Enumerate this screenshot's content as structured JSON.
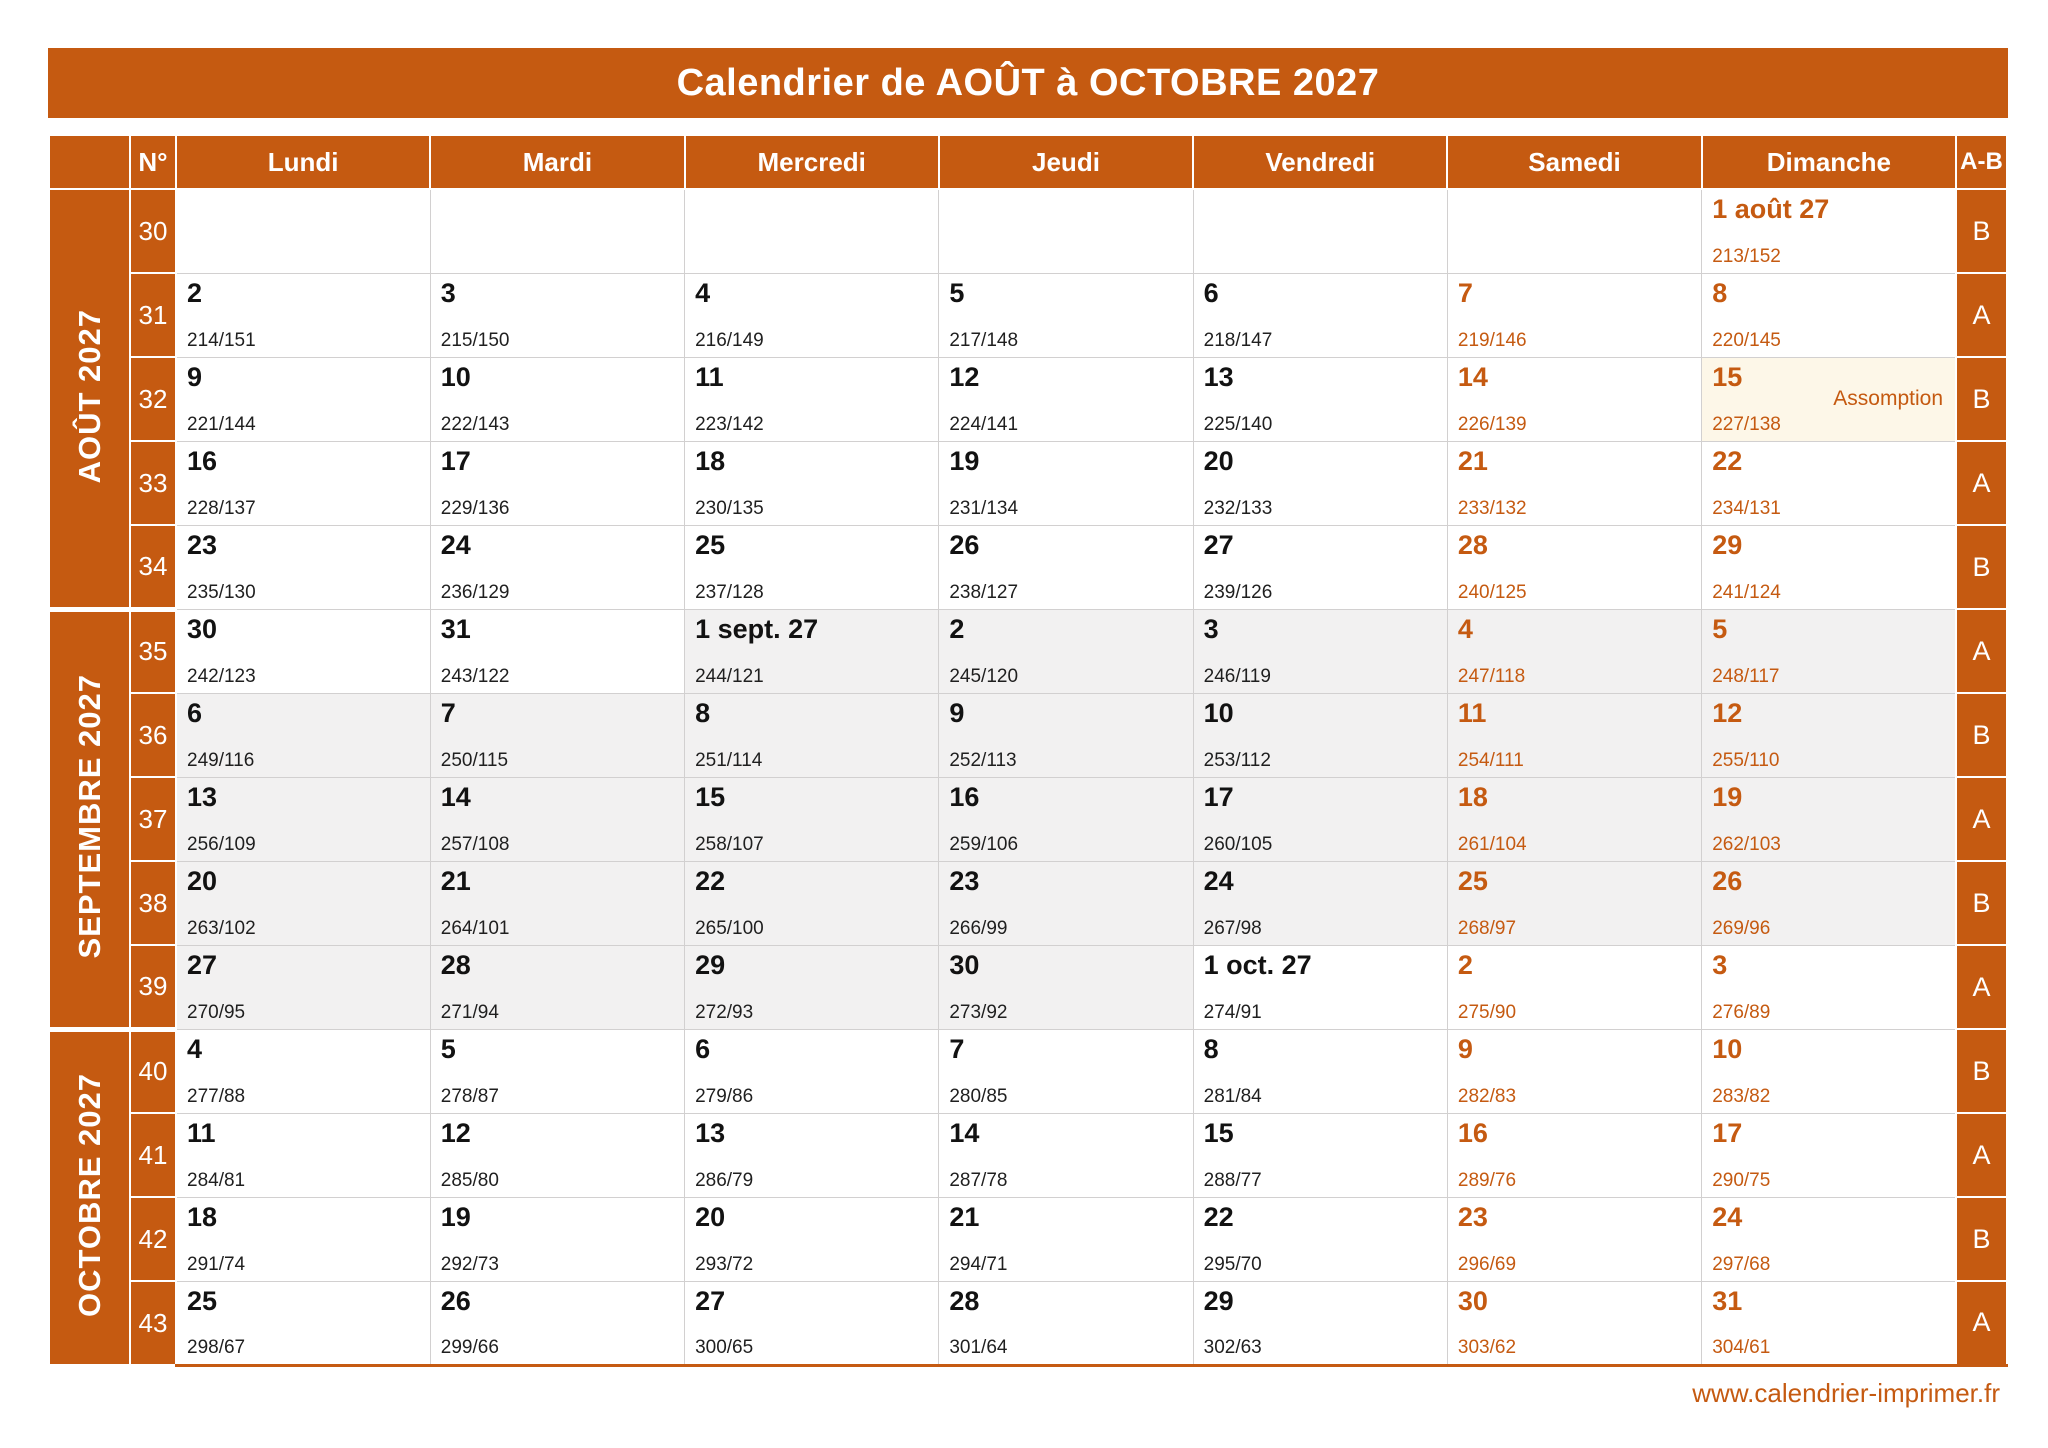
{
  "title": "Calendrier de AOÛT à OCTOBRE 2027",
  "colors": {
    "accent": "#C55A11",
    "weekend_text": "#C55A11",
    "september_tint": "#F2F1F1",
    "holiday_tint": "#FDF7E8",
    "cell_border": "#D2D0D0"
  },
  "header": {
    "columns": [
      "N°",
      "Lundi",
      "Mardi",
      "Mercredi",
      "Jeudi",
      "Vendredi",
      "Samedi",
      "Dimanche",
      "A-B"
    ]
  },
  "months": [
    {
      "label": "AOÛT 2027",
      "weeks": [
        {
          "num": "30",
          "ab": "B",
          "days": [
            {},
            {},
            {},
            {},
            {},
            {},
            {
              "label": "1 août 27",
              "sub": "213/152",
              "weekend": true
            }
          ]
        },
        {
          "num": "31",
          "ab": "A",
          "days": [
            {
              "label": "2",
              "sub": "214/151"
            },
            {
              "label": "3",
              "sub": "215/150"
            },
            {
              "label": "4",
              "sub": "216/149"
            },
            {
              "label": "5",
              "sub": "217/148"
            },
            {
              "label": "6",
              "sub": "218/147"
            },
            {
              "label": "7",
              "sub": "219/146",
              "weekend": true
            },
            {
              "label": "8",
              "sub": "220/145",
              "weekend": true
            }
          ]
        },
        {
          "num": "32",
          "ab": "B",
          "days": [
            {
              "label": "9",
              "sub": "221/144"
            },
            {
              "label": "10",
              "sub": "222/143"
            },
            {
              "label": "11",
              "sub": "223/142"
            },
            {
              "label": "12",
              "sub": "224/141"
            },
            {
              "label": "13",
              "sub": "225/140"
            },
            {
              "label": "14",
              "sub": "226/139",
              "weekend": true
            },
            {
              "label": "15",
              "sub": "227/138",
              "weekend": true,
              "tint": "cream",
              "holiday": "Assomption"
            }
          ]
        },
        {
          "num": "33",
          "ab": "A",
          "days": [
            {
              "label": "16",
              "sub": "228/137"
            },
            {
              "label": "17",
              "sub": "229/136"
            },
            {
              "label": "18",
              "sub": "230/135"
            },
            {
              "label": "19",
              "sub": "231/134"
            },
            {
              "label": "20",
              "sub": "232/133"
            },
            {
              "label": "21",
              "sub": "233/132",
              "weekend": true
            },
            {
              "label": "22",
              "sub": "234/131",
              "weekend": true
            }
          ]
        },
        {
          "num": "34",
          "ab": "B",
          "days": [
            {
              "label": "23",
              "sub": "235/130"
            },
            {
              "label": "24",
              "sub": "236/129"
            },
            {
              "label": "25",
              "sub": "237/128"
            },
            {
              "label": "26",
              "sub": "238/127"
            },
            {
              "label": "27",
              "sub": "239/126"
            },
            {
              "label": "28",
              "sub": "240/125",
              "weekend": true
            },
            {
              "label": "29",
              "sub": "241/124",
              "weekend": true
            }
          ]
        }
      ]
    },
    {
      "label": "SEPTEMBRE 2027",
      "weeks": [
        {
          "num": "35",
          "ab": "A",
          "days": [
            {
              "label": "30",
              "sub": "242/123"
            },
            {
              "label": "31",
              "sub": "243/122"
            },
            {
              "label": "1 sept. 27",
              "sub": "244/121",
              "tint": "gray"
            },
            {
              "label": "2",
              "sub": "245/120",
              "tint": "gray"
            },
            {
              "label": "3",
              "sub": "246/119",
              "tint": "gray"
            },
            {
              "label": "4",
              "sub": "247/118",
              "weekend": true,
              "tint": "gray"
            },
            {
              "label": "5",
              "sub": "248/117",
              "weekend": true,
              "tint": "gray"
            }
          ]
        },
        {
          "num": "36",
          "ab": "B",
          "days": [
            {
              "label": "6",
              "sub": "249/116",
              "tint": "gray"
            },
            {
              "label": "7",
              "sub": "250/115",
              "tint": "gray"
            },
            {
              "label": "8",
              "sub": "251/114",
              "tint": "gray"
            },
            {
              "label": "9",
              "sub": "252/113",
              "tint": "gray"
            },
            {
              "label": "10",
              "sub": "253/112",
              "tint": "gray"
            },
            {
              "label": "11",
              "sub": "254/111",
              "weekend": true,
              "tint": "gray"
            },
            {
              "label": "12",
              "sub": "255/110",
              "weekend": true,
              "tint": "gray"
            }
          ]
        },
        {
          "num": "37",
          "ab": "A",
          "days": [
            {
              "label": "13",
              "sub": "256/109",
              "tint": "gray"
            },
            {
              "label": "14",
              "sub": "257/108",
              "tint": "gray"
            },
            {
              "label": "15",
              "sub": "258/107",
              "tint": "gray"
            },
            {
              "label": "16",
              "sub": "259/106",
              "tint": "gray"
            },
            {
              "label": "17",
              "sub": "260/105",
              "tint": "gray"
            },
            {
              "label": "18",
              "sub": "261/104",
              "weekend": true,
              "tint": "gray"
            },
            {
              "label": "19",
              "sub": "262/103",
              "weekend": true,
              "tint": "gray"
            }
          ]
        },
        {
          "num": "38",
          "ab": "B",
          "days": [
            {
              "label": "20",
              "sub": "263/102",
              "tint": "gray"
            },
            {
              "label": "21",
              "sub": "264/101",
              "tint": "gray"
            },
            {
              "label": "22",
              "sub": "265/100",
              "tint": "gray"
            },
            {
              "label": "23",
              "sub": "266/99",
              "tint": "gray"
            },
            {
              "label": "24",
              "sub": "267/98",
              "tint": "gray"
            },
            {
              "label": "25",
              "sub": "268/97",
              "weekend": true,
              "tint": "gray"
            },
            {
              "label": "26",
              "sub": "269/96",
              "weekend": true,
              "tint": "gray"
            }
          ]
        },
        {
          "num": "39",
          "ab": "A",
          "days": [
            {
              "label": "27",
              "sub": "270/95",
              "tint": "gray"
            },
            {
              "label": "28",
              "sub": "271/94",
              "tint": "gray"
            },
            {
              "label": "29",
              "sub": "272/93",
              "tint": "gray"
            },
            {
              "label": "30",
              "sub": "273/92",
              "tint": "gray"
            },
            {
              "label": "1 oct. 27",
              "sub": "274/91"
            },
            {
              "label": "2",
              "sub": "275/90",
              "weekend": true
            },
            {
              "label": "3",
              "sub": "276/89",
              "weekend": true
            }
          ]
        }
      ]
    },
    {
      "label": "OCTOBRE 2027",
      "weeks": [
        {
          "num": "40",
          "ab": "B",
          "days": [
            {
              "label": "4",
              "sub": "277/88"
            },
            {
              "label": "5",
              "sub": "278/87"
            },
            {
              "label": "6",
              "sub": "279/86"
            },
            {
              "label": "7",
              "sub": "280/85"
            },
            {
              "label": "8",
              "sub": "281/84"
            },
            {
              "label": "9",
              "sub": "282/83",
              "weekend": true
            },
            {
              "label": "10",
              "sub": "283/82",
              "weekend": true
            }
          ]
        },
        {
          "num": "41",
          "ab": "A",
          "days": [
            {
              "label": "11",
              "sub": "284/81"
            },
            {
              "label": "12",
              "sub": "285/80"
            },
            {
              "label": "13",
              "sub": "286/79"
            },
            {
              "label": "14",
              "sub": "287/78"
            },
            {
              "label": "15",
              "sub": "288/77"
            },
            {
              "label": "16",
              "sub": "289/76",
              "weekend": true
            },
            {
              "label": "17",
              "sub": "290/75",
              "weekend": true
            }
          ]
        },
        {
          "num": "42",
          "ab": "B",
          "days": [
            {
              "label": "18",
              "sub": "291/74"
            },
            {
              "label": "19",
              "sub": "292/73"
            },
            {
              "label": "20",
              "sub": "293/72"
            },
            {
              "label": "21",
              "sub": "294/71"
            },
            {
              "label": "22",
              "sub": "295/70"
            },
            {
              "label": "23",
              "sub": "296/69",
              "weekend": true
            },
            {
              "label": "24",
              "sub": "297/68",
              "weekend": true
            }
          ]
        },
        {
          "num": "43",
          "ab": "A",
          "days": [
            {
              "label": "25",
              "sub": "298/67"
            },
            {
              "label": "26",
              "sub": "299/66"
            },
            {
              "label": "27",
              "sub": "300/65"
            },
            {
              "label": "28",
              "sub": "301/64"
            },
            {
              "label": "29",
              "sub": "302/63"
            },
            {
              "label": "30",
              "sub": "303/62",
              "weekend": true
            },
            {
              "label": "31",
              "sub": "304/61",
              "weekend": true
            }
          ]
        }
      ]
    }
  ],
  "footer": {
    "url": "www.calendrier-imprimer.fr"
  }
}
